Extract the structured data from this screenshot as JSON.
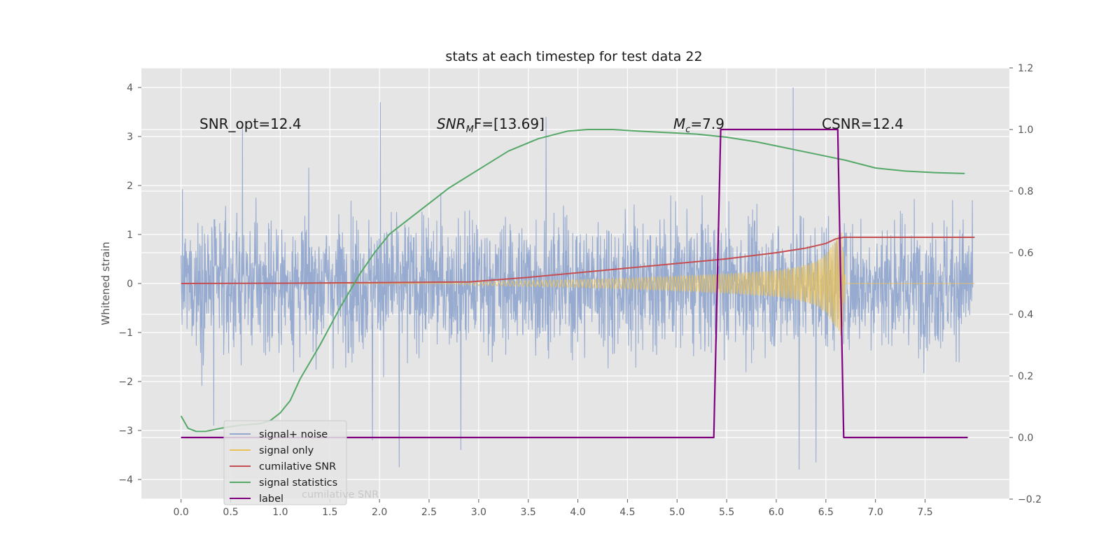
{
  "chart_data": {
    "type": "line",
    "title": "stats at each timestep for test data 22",
    "xlabel": "",
    "ylabel": "Whitened strain",
    "xlim": [
      -0.4,
      8.35
    ],
    "ylim": [
      -4.4,
      4.4
    ],
    "y2lim": [
      -0.2,
      1.2
    ],
    "x_ticks": [
      0.0,
      0.5,
      1.0,
      1.5,
      2.0,
      2.5,
      3.0,
      3.5,
      4.0,
      4.5,
      5.0,
      5.5,
      6.0,
      6.5,
      7.0,
      7.5
    ],
    "x_tick_labels": [
      "0.0",
      "0.5",
      "1.0",
      "1.5",
      "2.0",
      "2.5",
      "3.0",
      "3.5",
      "4.0",
      "4.5",
      "5.0",
      "5.5",
      "6.0",
      "6.5",
      "7.0",
      "7.5"
    ],
    "y_ticks": [
      -4,
      -3,
      -2,
      -1,
      0,
      1,
      2,
      3,
      4
    ],
    "y_tick_labels": [
      "−4",
      "−3",
      "−2",
      "−1",
      "0",
      "1",
      "2",
      "3",
      "4"
    ],
    "y2_ticks": [
      -0.2,
      0.0,
      0.2,
      0.4,
      0.6,
      0.8,
      1.0,
      1.2
    ],
    "y2_tick_labels": [
      "−0.2",
      "0.0",
      "0.2",
      "0.4",
      "0.6",
      "0.8",
      "1.0",
      "1.2"
    ],
    "grid": true,
    "legend_position": "lower-left",
    "annotations": {
      "snr_opt": "SNR_opt=12.4",
      "snr_mf_main": "SNR",
      "snr_mf_sub": "M",
      "snr_mf_tail": "F=[13.69]",
      "mc_main": "M",
      "mc_sub": "c",
      "mc_tail": "=7.9",
      "csnr": "CSNR=12.4"
    },
    "ghost_legend_text": "cumilative SNR",
    "series": [
      {
        "name": "signal+ noise",
        "axis": "left",
        "color": "#92a8cf",
        "description_envelope": {
          "x_range": [
            0.0,
            7.98
          ],
          "typical_abs": 1.5,
          "extreme_values": [
            [
              2.01,
              3.7
            ],
            [
              2.2,
              -3.75
            ],
            [
              6.17,
              4.0
            ],
            [
              6.23,
              -3.8
            ],
            [
              6.4,
              -3.65
            ],
            [
              2.82,
              -3.4
            ],
            [
              1.93,
              -3.2
            ],
            [
              0.33,
              -2.9
            ],
            [
              3.68,
              3.4
            ],
            [
              0.62,
              3.2
            ]
          ]
        }
      },
      {
        "name": "signal only",
        "axis": "left",
        "color": "#e8c15a",
        "envelope_x": [
          0.0,
          2.6,
          3.0,
          3.5,
          4.0,
          4.5,
          5.0,
          5.5,
          6.0,
          6.2,
          6.4,
          6.5,
          6.6,
          6.66,
          6.7,
          8.0
        ],
        "envelope_amp": [
          0.0,
          0.0,
          0.04,
          0.06,
          0.08,
          0.11,
          0.15,
          0.2,
          0.27,
          0.33,
          0.45,
          0.6,
          0.9,
          1.1,
          0.0,
          0.0
        ]
      },
      {
        "name": "cumilative SNR",
        "axis": "right",
        "color": "#c44e52",
        "x": [
          0.0,
          1.0,
          2.0,
          2.9,
          3.5,
          4.0,
          4.5,
          5.0,
          5.5,
          6.0,
          6.3,
          6.5,
          6.6,
          6.68,
          8.0
        ],
        "y": [
          0.5,
          0.501,
          0.503,
          0.505,
          0.52,
          0.535,
          0.55,
          0.565,
          0.58,
          0.6,
          0.615,
          0.63,
          0.645,
          0.65,
          0.65
        ]
      },
      {
        "name": "signal statistics",
        "axis": "right",
        "color": "#55a868",
        "x": [
          0.0,
          0.07,
          0.15,
          0.25,
          0.4,
          0.6,
          0.8,
          0.9,
          1.0,
          1.1,
          1.2,
          1.4,
          1.6,
          1.8,
          1.95,
          2.1,
          2.3,
          2.5,
          2.7,
          3.0,
          3.3,
          3.6,
          3.9,
          4.1,
          4.35,
          4.6,
          4.9,
          5.2,
          5.5,
          5.8,
          6.1,
          6.4,
          6.7,
          7.0,
          7.3,
          7.6,
          7.9
        ],
        "y": [
          0.07,
          0.03,
          0.02,
          0.02,
          0.03,
          0.04,
          0.045,
          0.055,
          0.08,
          0.12,
          0.19,
          0.3,
          0.42,
          0.53,
          0.6,
          0.66,
          0.71,
          0.76,
          0.81,
          0.87,
          0.93,
          0.97,
          0.995,
          1.0,
          1.0,
          0.995,
          0.99,
          0.985,
          0.975,
          0.96,
          0.94,
          0.92,
          0.9,
          0.875,
          0.865,
          0.86,
          0.857
        ]
      },
      {
        "name": "label",
        "axis": "right",
        "color": "#800080",
        "x": [
          0.0,
          5.37,
          5.44,
          6.62,
          6.68,
          7.93
        ],
        "y": [
          0.0,
          0.0,
          1.0,
          1.0,
          0.0,
          0.0
        ]
      }
    ]
  }
}
